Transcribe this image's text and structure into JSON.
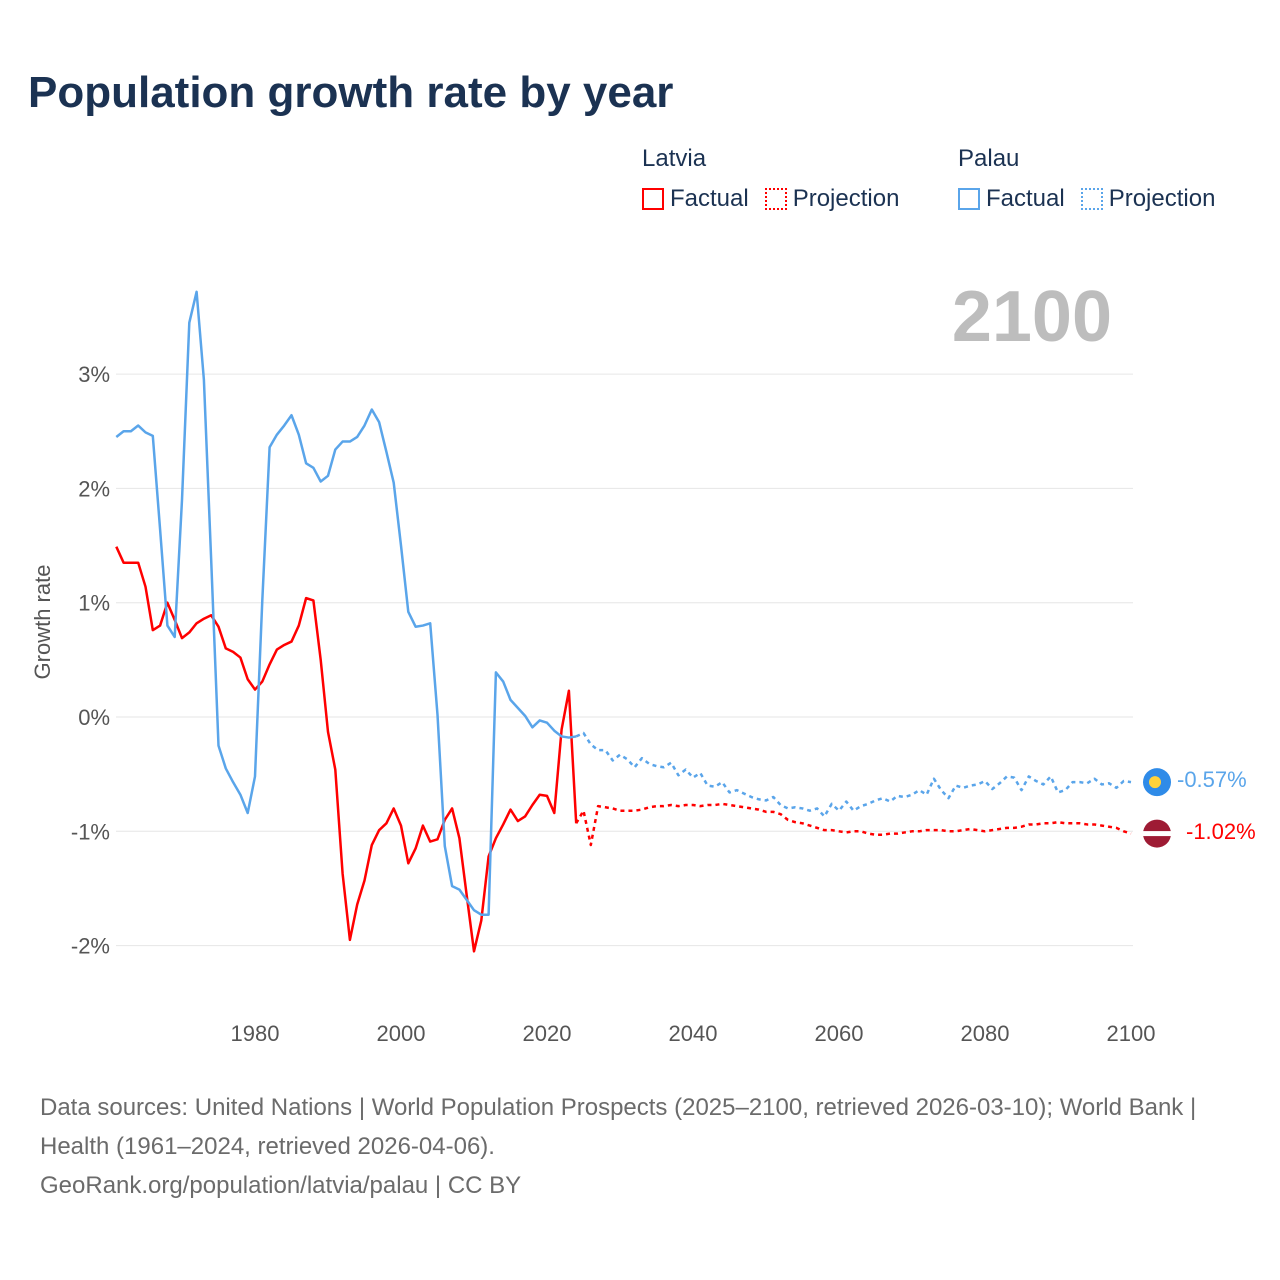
{
  "title": "Population growth rate by year",
  "current_year_label": "2100",
  "legend": [
    {
      "country": "Latvia",
      "factual": "Factual",
      "projection": "Projection",
      "color": "#ff0000"
    },
    {
      "country": "Palau",
      "factual": "Factual",
      "projection": "Projection",
      "color": "#5aa5ea"
    }
  ],
  "end_labels": {
    "palau": "-0.57%",
    "latvia": "-1.02%"
  },
  "source": {
    "line1": "Data sources: United Nations | World Population Prospects (2025–2100, retrieved 2026-03-10); World Bank | Health (1961–2024, retrieved 2026-04-06).",
    "line2": "GeoRank.org/population/latvia/palau | CC BY"
  },
  "chart_data": {
    "type": "line",
    "title": "Population growth rate by year",
    "xlabel": "",
    "ylabel": "Growth rate",
    "xlim": [
      1961,
      2100
    ],
    "ylim": [
      -2.3,
      3.8
    ],
    "x_ticks": [
      1980,
      2000,
      2020,
      2040,
      2060,
      2080,
      2100
    ],
    "y_ticks": [
      {
        "v": 3,
        "label": "3%"
      },
      {
        "v": 2,
        "label": "2%"
      },
      {
        "v": 1,
        "label": "1%"
      },
      {
        "v": 0,
        "label": "0%"
      },
      {
        "v": -1,
        "label": "-1%"
      },
      {
        "v": -2,
        "label": "-2%"
      }
    ],
    "grid": true,
    "legend_position": "top-right",
    "series": [
      {
        "name": "Latvia Factual",
        "color": "#ff0000",
        "dashed": false,
        "x_start": 1961,
        "values": [
          1.49,
          1.35,
          1.35,
          1.35,
          1.14,
          0.76,
          0.8,
          1.0,
          0.85,
          0.69,
          0.74,
          0.82,
          0.86,
          0.89,
          0.79,
          0.6,
          0.57,
          0.52,
          0.33,
          0.24,
          0.31,
          0.46,
          0.59,
          0.63,
          0.66,
          0.8,
          1.04,
          1.02,
          0.5,
          -0.13,
          -0.46,
          -1.37,
          -1.95,
          -1.64,
          -1.43,
          -1.12,
          -0.99,
          -0.93,
          -0.8,
          -0.95,
          -1.28,
          -1.15,
          -0.95,
          -1.09,
          -1.07,
          -0.9,
          -0.8,
          -1.06,
          -1.56,
          -2.05,
          -1.78,
          -1.22,
          -1.06,
          -0.94,
          -0.81,
          -0.91,
          -0.87,
          -0.77,
          -0.68,
          -0.69,
          -0.84,
          -0.11,
          0.23,
          -0.93
        ]
      },
      {
        "name": "Latvia Projection",
        "color": "#ff0000",
        "dashed": true,
        "x_start": 2025,
        "values": [
          -0.82,
          -1.12,
          -0.78,
          -0.79,
          -0.8,
          -0.82,
          -0.82,
          -0.82,
          -0.81,
          -0.79,
          -0.78,
          -0.78,
          -0.77,
          -0.78,
          -0.77,
          -0.77,
          -0.78,
          -0.77,
          -0.77,
          -0.76,
          -0.77,
          -0.78,
          -0.79,
          -0.8,
          -0.81,
          -0.83,
          -0.83,
          -0.85,
          -0.9,
          -0.92,
          -0.93,
          -0.95,
          -0.97,
          -0.99,
          -0.99,
          -1.0,
          -1.01,
          -1.0,
          -1.0,
          -1.02,
          -1.03,
          -1.03,
          -1.02,
          -1.02,
          -1.01,
          -1.0,
          -1.0,
          -0.99,
          -0.99,
          -0.99,
          -1.0,
          -1.0,
          -0.99,
          -0.98,
          -0.99,
          -1.0,
          -0.99,
          -0.98,
          -0.97,
          -0.97,
          -0.96,
          -0.94,
          -0.94,
          -0.93,
          -0.93,
          -0.92,
          -0.93,
          -0.93,
          -0.93,
          -0.94,
          -0.94,
          -0.95,
          -0.96,
          -0.97,
          -1.0,
          -1.02
        ]
      },
      {
        "name": "Palau Factual",
        "color": "#5aa5ea",
        "dashed": false,
        "x_start": 1961,
        "values": [
          2.45,
          2.5,
          2.5,
          2.55,
          2.49,
          2.46,
          1.64,
          0.8,
          0.7,
          1.9,
          3.45,
          3.72,
          2.95,
          1.37,
          -0.25,
          -0.45,
          -0.57,
          -0.68,
          -0.84,
          -0.52,
          1.02,
          2.36,
          2.47,
          2.55,
          2.64,
          2.47,
          2.22,
          2.18,
          2.06,
          2.11,
          2.34,
          2.41,
          2.41,
          2.45,
          2.55,
          2.69,
          2.58,
          2.32,
          2.05,
          1.5,
          0.92,
          0.79,
          0.8,
          0.82,
          0.02,
          -1.13,
          -1.48,
          -1.51,
          -1.6,
          -1.69,
          -1.73,
          -1.73,
          0.39,
          0.31,
          0.15,
          0.08,
          0.01,
          -0.09,
          -0.03,
          -0.05,
          -0.12,
          -0.17,
          -0.18,
          -0.17
        ]
      },
      {
        "name": "Palau Projection",
        "color": "#5aa5ea",
        "dashed": true,
        "x_start": 2025,
        "values": [
          -0.14,
          -0.24,
          -0.29,
          -0.29,
          -0.38,
          -0.33,
          -0.37,
          -0.44,
          -0.36,
          -0.41,
          -0.43,
          -0.44,
          -0.4,
          -0.51,
          -0.46,
          -0.53,
          -0.49,
          -0.6,
          -0.61,
          -0.57,
          -0.66,
          -0.64,
          -0.67,
          -0.7,
          -0.72,
          -0.73,
          -0.7,
          -0.77,
          -0.8,
          -0.79,
          -0.8,
          -0.82,
          -0.8,
          -0.87,
          -0.76,
          -0.82,
          -0.74,
          -0.82,
          -0.78,
          -0.76,
          -0.73,
          -0.71,
          -0.74,
          -0.69,
          -0.7,
          -0.68,
          -0.64,
          -0.68,
          -0.54,
          -0.64,
          -0.71,
          -0.6,
          -0.62,
          -0.6,
          -0.59,
          -0.56,
          -0.63,
          -0.58,
          -0.52,
          -0.53,
          -0.64,
          -0.52,
          -0.56,
          -0.59,
          -0.52,
          -0.66,
          -0.64,
          -0.57,
          -0.57,
          -0.58,
          -0.54,
          -0.59,
          -0.58,
          -0.62,
          -0.56,
          -0.57
        ]
      }
    ]
  }
}
